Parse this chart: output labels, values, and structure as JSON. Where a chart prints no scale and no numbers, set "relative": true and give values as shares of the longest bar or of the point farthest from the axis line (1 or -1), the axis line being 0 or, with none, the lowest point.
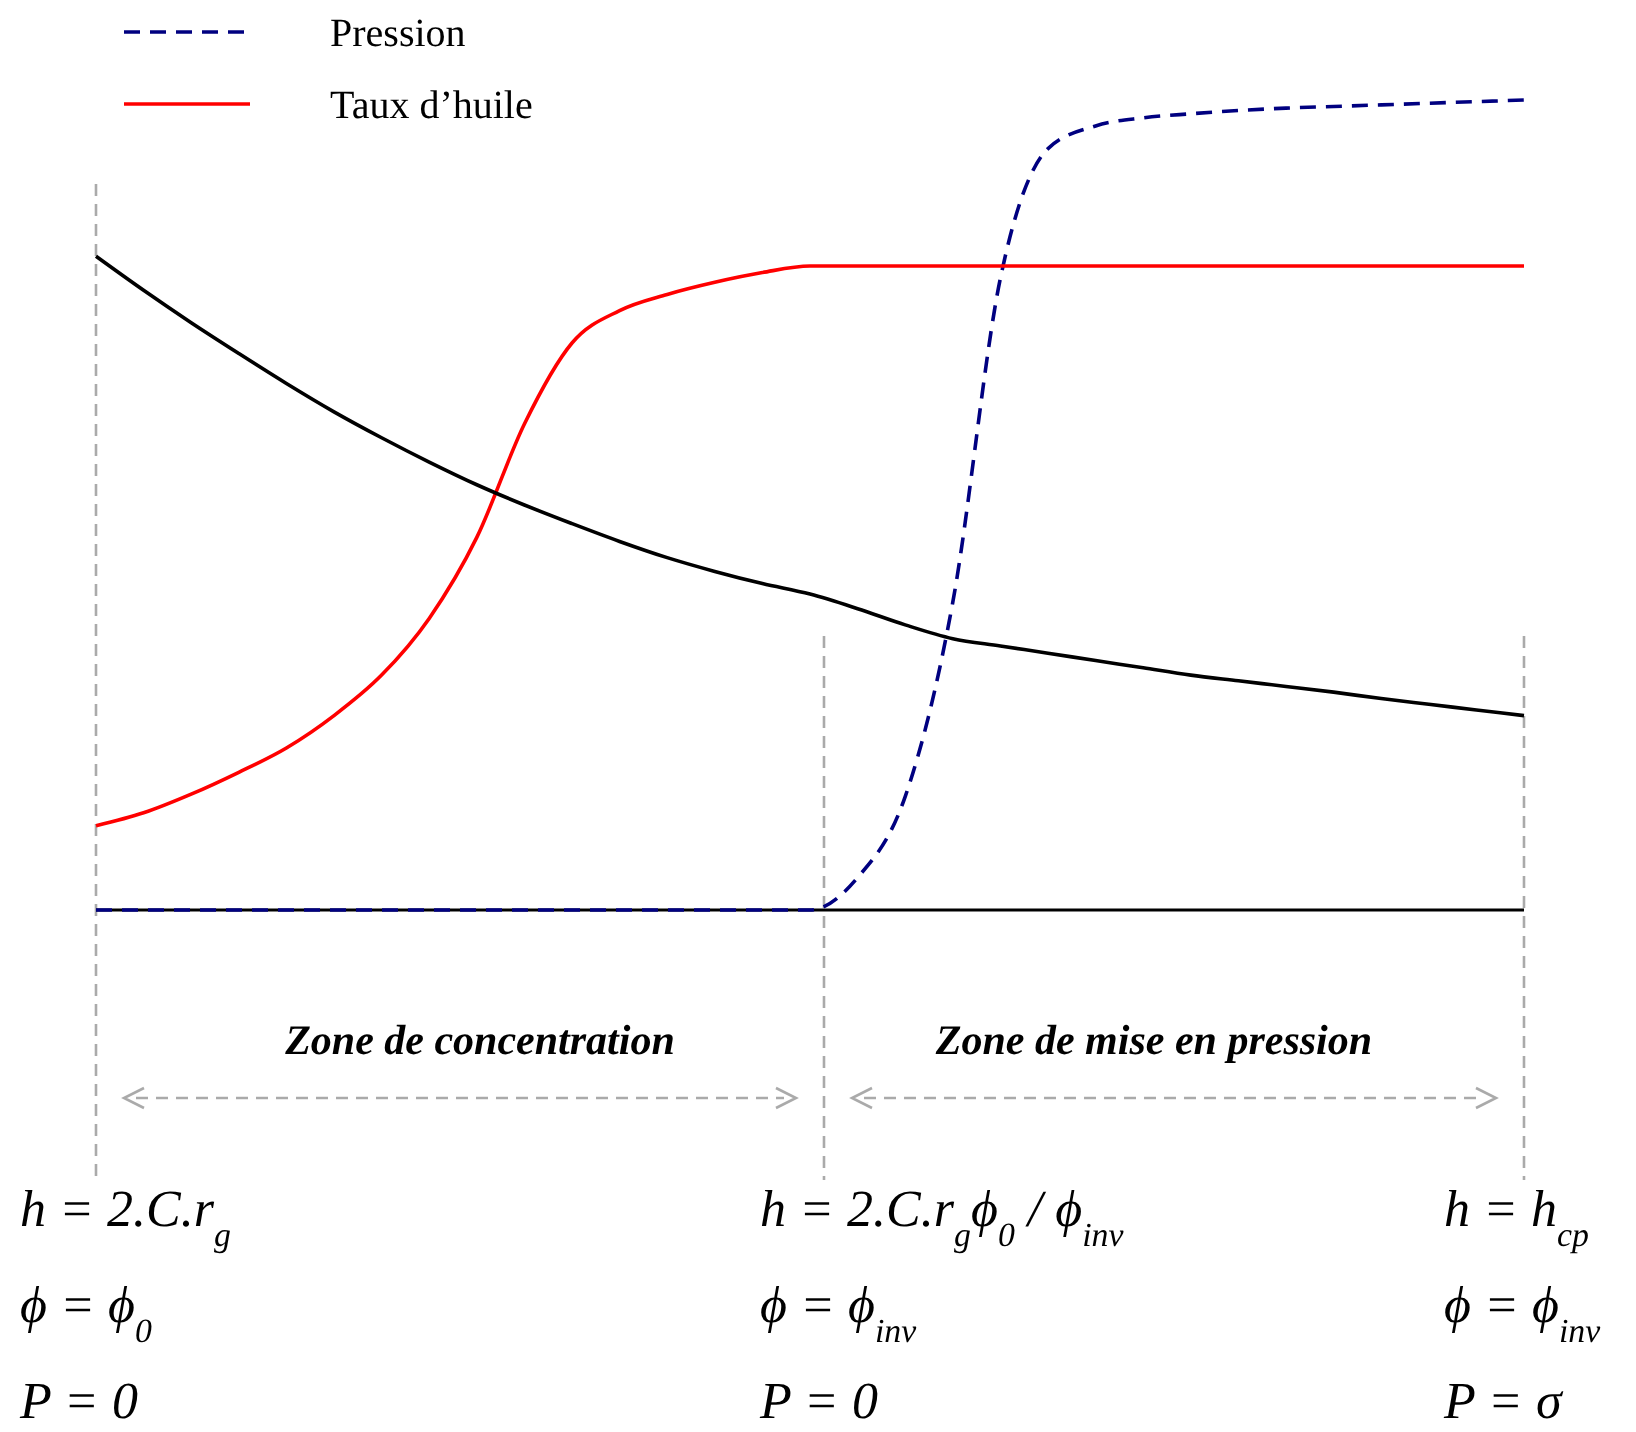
{
  "chart_data": {
    "type": "line",
    "relative": true,
    "legend": "top",
    "categories": [
      null,
      null,
      null,
      null,
      null,
      null,
      null,
      null,
      null,
      null,
      null,
      null,
      null,
      null,
      null,
      null,
      null,
      null,
      null,
      null,
      null,
      null,
      null,
      null,
      null,
      null,
      null,
      null,
      null,
      null,
      null
    ],
    "series": [
      {
        "name": "Pression",
        "color": "#000080",
        "line_style": "dashed",
        "values": [
          0,
          0,
          0,
          0,
          0,
          0,
          0,
          0,
          0,
          0,
          0,
          0,
          0,
          0,
          0,
          0,
          0.04,
          0.14,
          0.38,
          0.78,
          0.94,
          0.968,
          0.978,
          0.983,
          0.987,
          0.99,
          0.992,
          0.994,
          0.996,
          0.998,
          1
        ]
      },
      {
        "name": "Taux d’huile",
        "color": "#ff0000",
        "line_style": "solid",
        "values": [
          0.104,
          0.12,
          0.143,
          0.17,
          0.2,
          0.24,
          0.29,
          0.36,
          0.46,
          0.6,
          0.7,
          0.74,
          0.76,
          0.775,
          0.787,
          0.795,
          0.795,
          0.795,
          0.795,
          0.795,
          0.795,
          0.795,
          0.795,
          0.795,
          0.795,
          0.795,
          0.795,
          0.795,
          0.795,
          0.795,
          0.795
        ]
      },
      {
        "color": "#000000",
        "line_style": "solid",
        "values": [
          0.807,
          0.765,
          0.725,
          0.687,
          0.65,
          0.615,
          0.583,
          0.553,
          0.525,
          0.5,
          0.477,
          0.455,
          0.435,
          0.418,
          0.403,
          0.39,
          0.372,
          0.352,
          0.335,
          0.326,
          0.317,
          0.308,
          0.299,
          0.29,
          0.283,
          0.276,
          0.269,
          0.261,
          0.254,
          0.247,
          0.24
        ]
      }
    ],
    "annotations": [
      "Zone de concentration",
      "Zone de mise en pression",
      "h = 2.C.r$_{g}$",
      "ϕ = ϕ$_{0}$",
      "P = 0",
      "h = 2.C.r$_{g}$ϕ$_{0}$ / ϕ$_{inv}$",
      "ϕ = ϕ$_{inv}$",
      "P = 0",
      "h = h$_{cp}$",
      "ϕ = ϕ$_{inv}$",
      "P = σ"
    ]
  }
}
